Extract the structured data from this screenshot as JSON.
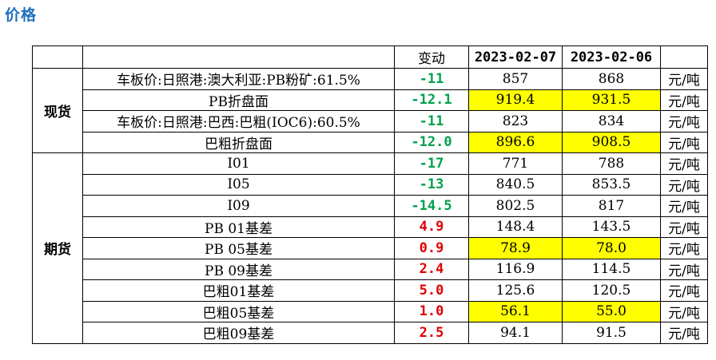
{
  "title": "价格",
  "header": {
    "change": "变动",
    "date1": "2023-02-07",
    "date2": "2023-02-06"
  },
  "colors": {
    "title": "#1f6fbf",
    "up": "#e00000",
    "down": "#00a14b",
    "highlight": "#ffff00"
  },
  "groups": [
    {
      "category": "现货",
      "rows": [
        {
          "label": "车板价:日照港:澳大利亚:PB粉矿:61.5%",
          "change": "-11",
          "v1": "857",
          "v2": "868",
          "unit": "元/吨",
          "highlight": false
        },
        {
          "label": "PB折盘面",
          "change": "-12.1",
          "v1": "919.4",
          "v2": "931.5",
          "unit": "元/吨",
          "highlight": true
        },
        {
          "label": "车板价:日照港:巴西:巴粗(IOC6):60.5%",
          "change": "-11",
          "v1": "823",
          "v2": "834",
          "unit": "元/吨",
          "highlight": false
        },
        {
          "label": "巴粗折盘面",
          "change": "-12.0",
          "v1": "896.6",
          "v2": "908.5",
          "unit": "元/吨",
          "highlight": true
        }
      ]
    },
    {
      "category": "期货",
      "rows": [
        {
          "label": "I01",
          "change": "-17",
          "v1": "771",
          "v2": "788",
          "unit": "元/吨",
          "highlight": false
        },
        {
          "label": "I05",
          "change": "-13",
          "v1": "840.5",
          "v2": "853.5",
          "unit": "元/吨",
          "highlight": false
        },
        {
          "label": "I09",
          "change": "-14.5",
          "v1": "802.5",
          "v2": "817",
          "unit": "元/吨",
          "highlight": false
        },
        {
          "label": "PB 01基差",
          "change": "4.9",
          "v1": "148.4",
          "v2": "143.5",
          "unit": "元/吨",
          "highlight": false
        },
        {
          "label": "PB 05基差",
          "change": "0.9",
          "v1": "78.9",
          "v2": "78.0",
          "unit": "元/吨",
          "highlight": true
        },
        {
          "label": "PB 09基差",
          "change": "2.4",
          "v1": "116.9",
          "v2": "114.5",
          "unit": "元/吨",
          "highlight": false
        },
        {
          "label": "巴粗01基差",
          "change": "5.0",
          "v1": "125.6",
          "v2": "120.5",
          "unit": "元/吨",
          "highlight": false
        },
        {
          "label": "巴粗05基差",
          "change": "1.0",
          "v1": "56.1",
          "v2": "55.0",
          "unit": "元/吨",
          "highlight": true
        },
        {
          "label": "巴粗09基差",
          "change": "2.5",
          "v1": "94.1",
          "v2": "91.5",
          "unit": "元/吨",
          "highlight": false
        }
      ]
    }
  ]
}
